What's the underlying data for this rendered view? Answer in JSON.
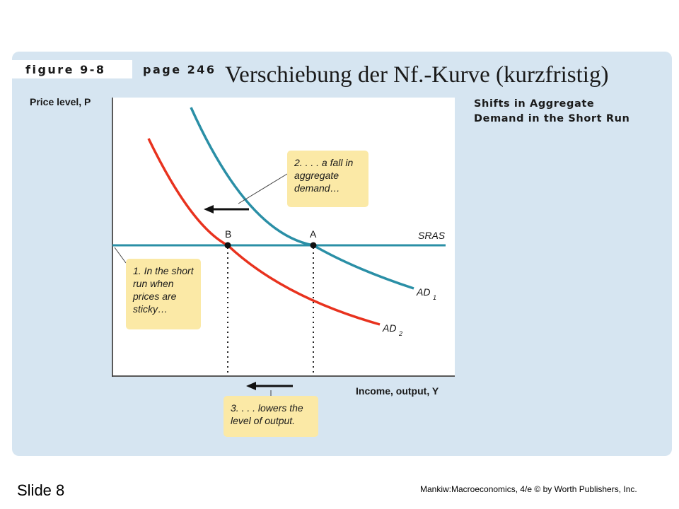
{
  "header": {
    "figure_label": "figure 9-8",
    "page_label": "page 246",
    "title": "Verschiebung der Nf.-Kurve (kurzfristig)"
  },
  "caption": {
    "line1": "Shifts in Aggregate",
    "line2": "Demand in the Short Run"
  },
  "axes": {
    "ylabel": "Price level, P",
    "xlabel": "Income, output, Y"
  },
  "curves": {
    "sras": "SRAS",
    "ad1": "AD",
    "ad1_sub": "1",
    "ad2": "AD",
    "ad2_sub": "2"
  },
  "points": {
    "a": "A",
    "b": "B"
  },
  "notes": {
    "note1": "1. In the short run when prices are sticky…",
    "note2": "2. . . . a fall in aggregate demand…",
    "note3": "3. . . . lowers the level of output."
  },
  "colors": {
    "ad1": "#2a8fa6",
    "ad2": "#e8321e",
    "sras": "#2a8fa6",
    "panel": "#d6e5f1",
    "note": "#fbe9a6"
  },
  "footer": {
    "slide": "Slide 8",
    "credit": "Mankiw:Macroeconomics, 4/e © by Worth Publishers, Inc."
  }
}
